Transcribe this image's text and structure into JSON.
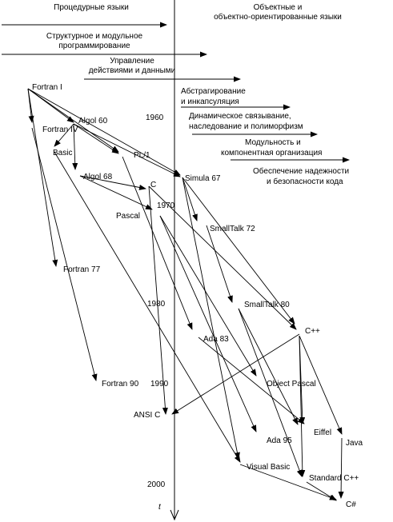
{
  "header": {
    "left": "Процедурные языки",
    "right_line1": "Объектные и",
    "right_line2": "объектно-ориентированные языки"
  },
  "stages": [
    {
      "lines": [
        "Структурное и модульное",
        "программирование"
      ]
    },
    {
      "lines": [
        "Управление",
        "действиями и данными"
      ]
    },
    {
      "lines": [
        "Абстрагирование",
        "и инкапсуляция"
      ]
    },
    {
      "lines": [
        "Динамическое связывание,",
        "наследование и полиморфизм"
      ]
    },
    {
      "lines": [
        "Модульность и",
        "компонентная организация"
      ]
    },
    {
      "lines": [
        "Обеспечение надежности",
        "и безопасности кода"
      ]
    }
  ],
  "years": [
    "1960",
    "1970",
    "1980",
    "1990",
    "2000"
  ],
  "axis_label": "t",
  "languages": {
    "fortran1": "Fortran I",
    "algol60": "Algol 60",
    "fortran4": "Fortran IV",
    "basic": "Basic",
    "pl1": "PL/1",
    "algol68": "Algol 68",
    "simula67": "Simula 67",
    "c": "C",
    "pascal": "Pascal",
    "smalltalk72": "SmallTalk 72",
    "fortran77": "Fortran 77",
    "smalltalk80": "SmallTalk 80",
    "ada83": "Ada 83",
    "cpp": "C++",
    "objectpascal": "Object Pascal",
    "fortran90": "Fortran 90",
    "ansic": "ANSI C",
    "eiffel": "Eiffel",
    "java": "Java",
    "ada95": "Ada 95",
    "visualbasic": "Visual Basic",
    "standardcpp": "Standard C++",
    "csharp": "C#"
  }
}
